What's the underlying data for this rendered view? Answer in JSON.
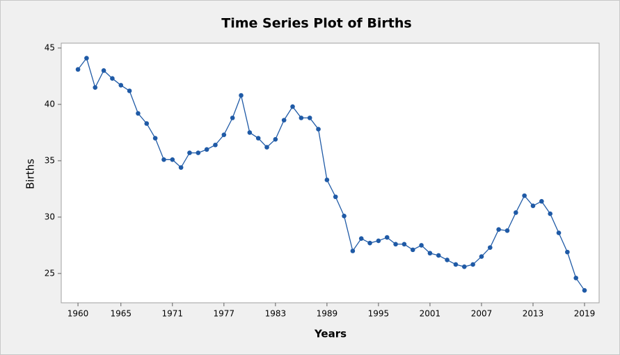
{
  "chart_data": {
    "type": "line",
    "title": "Time Series Plot of Births",
    "x_label": "Years",
    "y_label": "Births",
    "x": [
      1960,
      1961,
      1962,
      1963,
      1964,
      1965,
      1966,
      1967,
      1968,
      1969,
      1970,
      1971,
      1972,
      1973,
      1974,
      1975,
      1976,
      1977,
      1978,
      1979,
      1980,
      1981,
      1982,
      1983,
      1984,
      1985,
      1986,
      1987,
      1988,
      1989,
      1990,
      1991,
      1992,
      1993,
      1994,
      1995,
      1996,
      1997,
      1998,
      1999,
      2000,
      2001,
      2002,
      2003,
      2004,
      2005,
      2006,
      2007,
      2008,
      2009,
      2010,
      2011,
      2012,
      2013,
      2014,
      2015,
      2016,
      2017,
      2018,
      2019
    ],
    "series": [
      {
        "name": "Births",
        "color": "#1f5aa6",
        "values": [
          43.1,
          44.1,
          41.5,
          43.0,
          42.3,
          41.7,
          41.2,
          39.2,
          38.3,
          37.0,
          35.1,
          35.1,
          34.4,
          35.7,
          35.7,
          36.0,
          36.4,
          37.3,
          38.8,
          40.8,
          37.5,
          37.0,
          36.2,
          36.9,
          38.6,
          39.8,
          38.8,
          38.8,
          37.8,
          33.3,
          31.8,
          30.1,
          27.0,
          28.1,
          27.7,
          27.9,
          28.2,
          27.6,
          27.6,
          27.1,
          27.5,
          26.8,
          26.6,
          26.2,
          25.8,
          25.6,
          25.8,
          26.5,
          27.3,
          28.9,
          28.8,
          30.4,
          31.9,
          31.0,
          31.4,
          30.3,
          28.6,
          26.9,
          24.6,
          23.5
        ]
      }
    ],
    "xlim": [
      1958.05,
      2020.7
    ],
    "xticks": [
      1960,
      1965,
      1971,
      1977,
      1983,
      1989,
      1995,
      2001,
      2007,
      2013,
      2019
    ],
    "ylim": [
      22.4,
      45.43
    ],
    "yticks": [
      25,
      30,
      35,
      40,
      45
    ],
    "grid": false
  }
}
